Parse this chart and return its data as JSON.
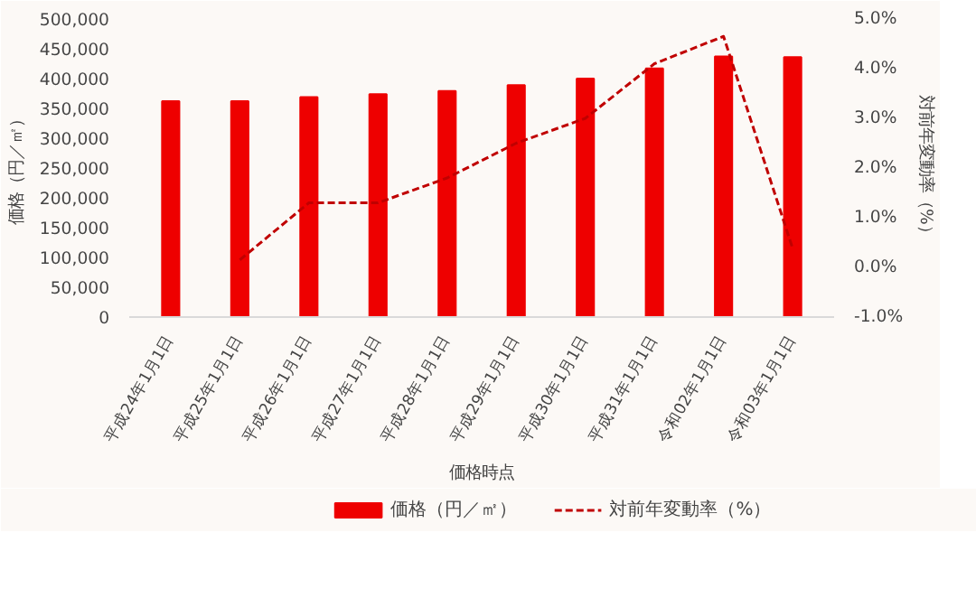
{
  "chart_data": {
    "type": "bar",
    "xlabel": "価格時点",
    "ylabel": "価格（円／㎡）",
    "y2label": "対前年変動率（%）",
    "categories": [
      "平成24年1月1日",
      "平成25年1月1日",
      "平成26年1月1日",
      "平成27年1月1日",
      "平成28年1月1日",
      "平成29年1月1日",
      "平成30年1月1日",
      "平成31年1月1日",
      "令和02年1月1日",
      "令和03年1月1日"
    ],
    "series": [
      {
        "name": "価格（円／㎡）",
        "color": "#ee0000",
        "values": [
          362000,
          362000,
          369000,
          374000,
          379000,
          389000,
          400000,
          417000,
          437000,
          436000
        ]
      },
      {
        "name": "対前年変動率（%）",
        "type": "line",
        "axis": "y2",
        "color": "#c00000",
        "line_style": "dashed",
        "values": [
          null,
          0.15,
          1.3,
          1.3,
          1.8,
          2.5,
          3.0,
          4.1,
          4.65,
          0.38
        ]
      }
    ],
    "ylim": [
      0,
      500000
    ],
    "yticks": [
      0,
      {
        "value": 50000,
        "label": "50,000"
      },
      {
        "value": 100000,
        "label": "100,000"
      },
      {
        "value": 150000,
        "label": "150,000"
      },
      {
        "value": 200000,
        "label": "200,000"
      },
      {
        "value": 250000,
        "label": "250,000"
      },
      {
        "value": 300000,
        "label": "300,000"
      },
      {
        "value": 350000,
        "label": "350,000"
      },
      {
        "value": 400000,
        "label": "400,000"
      },
      {
        "value": 450000,
        "label": "450,000"
      },
      {
        "value": 500000,
        "label": "500,000"
      }
    ],
    "y2lim": [
      -1.0,
      5.0
    ],
    "y2ticks": [
      {
        "value": -1.0,
        "label": "-1.0%"
      },
      {
        "value": 0.0,
        "label": "0.0%"
      },
      {
        "value": 1.0,
        "label": "1.0%"
      },
      {
        "value": 2.0,
        "label": "2.0%"
      },
      {
        "value": 3.0,
        "label": "3.0%"
      },
      {
        "value": 4.0,
        "label": "4.0%"
      },
      {
        "value": 5.0,
        "label": "5.0%"
      }
    ],
    "grid": false,
    "legend": "bottom"
  }
}
